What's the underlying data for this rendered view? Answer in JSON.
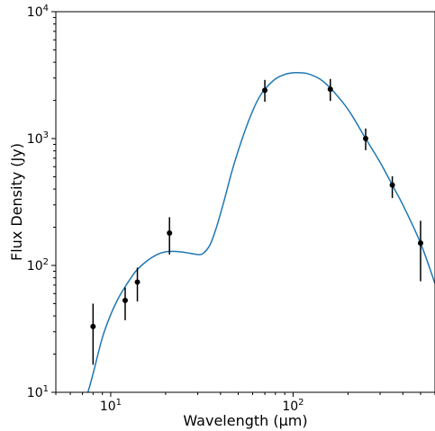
{
  "chart_data": {
    "type": "scatter",
    "title": "",
    "xlabel": "Wavelength (μm)",
    "ylabel": "Flux Density (Jy)",
    "xscale": "log",
    "yscale": "log",
    "xlim": [
      5,
      600
    ],
    "ylim": [
      10,
      10000
    ],
    "x_tick_labels": [
      {
        "value": 10,
        "base": "10",
        "exp": "1"
      },
      {
        "value": 100,
        "base": "10",
        "exp": "2"
      }
    ],
    "y_tick_labels": [
      {
        "value": 10,
        "base": "10",
        "exp": "1"
      },
      {
        "value": 100,
        "base": "10",
        "exp": "2"
      },
      {
        "value": 1000,
        "base": "10",
        "exp": "3"
      },
      {
        "value": 10000,
        "base": "10",
        "exp": "4"
      }
    ],
    "grid": false,
    "series": [
      {
        "kind": "points_with_errorbars",
        "color": "#000000",
        "points": [
          {
            "x": 8,
            "y": 33,
            "ylow": 16.5,
            "yhigh": 50
          },
          {
            "x": 12,
            "y": 53,
            "ylow": 37,
            "yhigh": 67
          },
          {
            "x": 14,
            "y": 74,
            "ylow": 52,
            "yhigh": 96
          },
          {
            "x": 21,
            "y": 180,
            "ylow": 122,
            "yhigh": 240
          },
          {
            "x": 70,
            "y": 2400,
            "ylow": 1950,
            "yhigh": 2900
          },
          {
            "x": 160,
            "y": 2450,
            "ylow": 1980,
            "yhigh": 2950
          },
          {
            "x": 250,
            "y": 1000,
            "ylow": 810,
            "yhigh": 1200
          },
          {
            "x": 350,
            "y": 430,
            "ylow": 340,
            "yhigh": 505
          },
          {
            "x": 500,
            "y": 150,
            "ylow": 75,
            "yhigh": 225
          }
        ]
      },
      {
        "kind": "model_curve",
        "color": "#1f77b4",
        "x": [
          7.5,
          8,
          9,
          10,
          11,
          12,
          13,
          14,
          16,
          18,
          20,
          22,
          24,
          27,
          30,
          32,
          35,
          38,
          42,
          46,
          50,
          55,
          60,
          65,
          70,
          80,
          90,
          100,
          110,
          120,
          140,
          160,
          200,
          250,
          300,
          350,
          400,
          500,
          600
        ],
        "y": [
          10,
          14,
          27,
          41,
          55,
          68,
          81,
          93,
          110,
          122,
          128,
          129,
          128,
          125,
          122,
          124,
          145,
          200,
          330,
          540,
          800,
          1200,
          1650,
          2100,
          2450,
          2950,
          3200,
          3300,
          3300,
          3250,
          2950,
          2500,
          1700,
          1000,
          650,
          430,
          300,
          150,
          72
        ]
      }
    ]
  }
}
